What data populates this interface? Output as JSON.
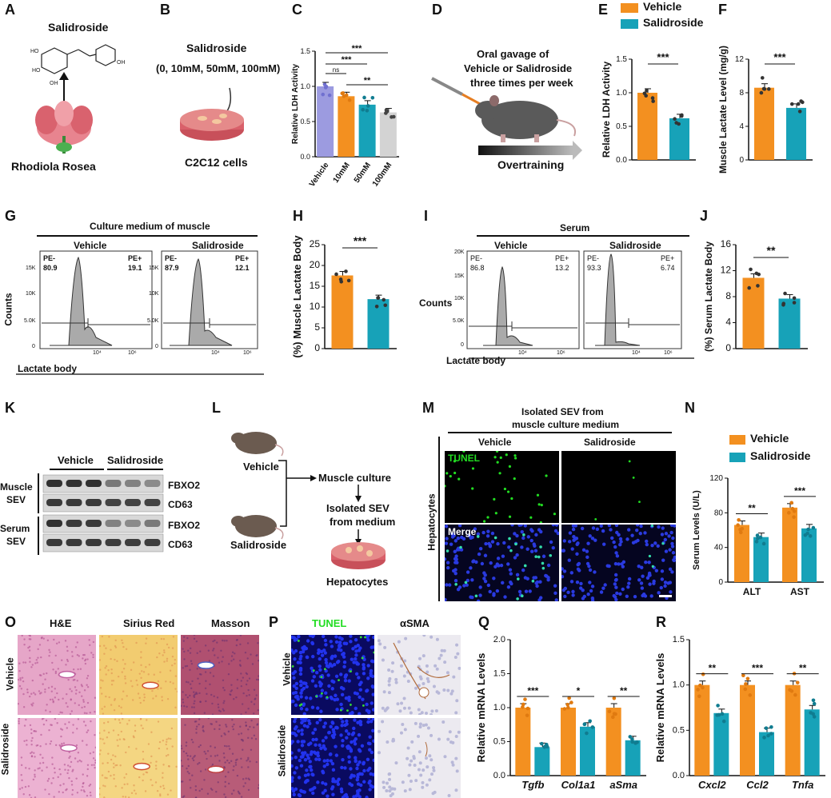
{
  "colors": {
    "vehicle": "#F39020",
    "salidroside": "#17A2B8",
    "purple": "#9C9BE0",
    "gray": "#D3D3D3",
    "greenTunel": "#22DD22"
  },
  "labels": [
    "A",
    "B",
    "C",
    "D",
    "E",
    "F",
    "G",
    "H",
    "I",
    "J",
    "K",
    "L",
    "M",
    "N",
    "O",
    "P",
    "Q",
    "R"
  ],
  "panelA": {
    "compound": "Salidroside",
    "plant": "Rhodiola Rosea"
  },
  "panelB": {
    "title": "Salidroside",
    "doses": "(0, 10mM, 50mM, 100mM)",
    "cells": "C2C12 cells"
  },
  "panelD": {
    "line1": "Oral gavage of",
    "line2": "Vehicle or Salidroside",
    "line3": "three times per week",
    "arrow": "Overtraining"
  },
  "legend": {
    "vehicle": "Vehicle",
    "salidroside": "Salidroside"
  },
  "panelG": {
    "title": "Culture medium of muscle",
    "vehicle": "Vehicle",
    "salidroside": "Salidroside",
    "ylabel": "Counts",
    "xlabel": "Lactate body",
    "pe_minus": "PE-",
    "pe_plus": "PE+",
    "v_neg": "80.9",
    "v_pos": "19.1",
    "s_neg": "87.9",
    "s_pos": "12.1",
    "yticks": [
      "15K",
      "10K",
      "5.0K",
      "0"
    ],
    "xticks": [
      "10⁴",
      "10⁶"
    ]
  },
  "panelI": {
    "title": "Serum",
    "vehicle": "Vehicle",
    "salidroside": "Salidroside",
    "ylabel": "Counts",
    "xlabel": "Lactate body",
    "pe_minus": "PE-",
    "pe_plus": "PE+",
    "v_neg": "86.8",
    "v_pos": "13.2",
    "s_neg": "93.3",
    "s_pos": "6.74",
    "yticks": [
      "20K",
      "15K",
      "10K",
      "5.0K",
      "0"
    ],
    "xticks": [
      "10⁴",
      "10⁶"
    ]
  },
  "panelK": {
    "vehicle": "Vehicle",
    "salidroside": "Salidroside",
    "row1": "Muscle",
    "row1b": "SEV",
    "row2": "Serum",
    "row2b": "SEV",
    "fbxo2": "FBXO2",
    "cd63": "CD63"
  },
  "panelL": {
    "vehicle": "Vehicle",
    "salidroside": "Salidroside",
    "step1": "Muscle culture",
    "step2a": "Isolated SEV",
    "step2b": "from medium",
    "step3": "Hepatocytes"
  },
  "panelM": {
    "title1": "Isolated SEV from",
    "title2": "muscle culture medium",
    "vehicle": "Vehicle",
    "salidroside": "Salidroside",
    "tunel": "TUNEL",
    "merge": "Merge",
    "side": "Hepatocytes"
  },
  "panelO": {
    "he": "H&E",
    "sirius": "Sirius Red",
    "masson": "Masson",
    "vehicle": "Vehicle",
    "salidroside": "Salidroside"
  },
  "panelP": {
    "tunel": "TUNEL",
    "asma": "αSMA",
    "vehicle": "Vehicle",
    "salidroside": "Salidroside"
  },
  "chart_data": [
    {
      "panel": "C",
      "type": "bar",
      "ylabel": "Relative LDH Activity",
      "categories": [
        "Vehicle",
        "10mM",
        "50mM",
        "100mM"
      ],
      "values": [
        1.0,
        0.86,
        0.74,
        0.63
      ],
      "ylim": [
        0,
        1.5
      ],
      "yticks": [
        0.0,
        0.5,
        1.0,
        1.5
      ],
      "sig": [
        "ns",
        "***",
        "**",
        "***"
      ]
    },
    {
      "panel": "E",
      "type": "bar",
      "ylabel": "Relative LDH Activity",
      "categories": [
        "Vehicle",
        "Salidroside"
      ],
      "values": [
        1.0,
        0.62
      ],
      "ylim": [
        0,
        1.5
      ],
      "yticks": [
        0.0,
        0.5,
        1.0,
        1.5
      ],
      "sig": [
        "***"
      ]
    },
    {
      "panel": "F",
      "type": "bar",
      "ylabel": "Muscle Lactate Level (mg/g)",
      "categories": [
        "Vehicle",
        "Salidroside"
      ],
      "values": [
        8.6,
        6.2
      ],
      "ylim": [
        0,
        12
      ],
      "yticks": [
        0,
        4,
        8,
        12
      ],
      "sig": [
        "***"
      ]
    },
    {
      "panel": "H",
      "type": "bar",
      "ylabel": "(%) Muscle Lactate Body",
      "categories": [
        "Vehicle",
        "Salidroside"
      ],
      "values": [
        17.6,
        11.9
      ],
      "ylim": [
        0,
        25
      ],
      "yticks": [
        0,
        5,
        10,
        15,
        20,
        25
      ],
      "sig": [
        "***"
      ]
    },
    {
      "panel": "J",
      "type": "bar",
      "ylabel": "(%) Serum Lactate Body",
      "categories": [
        "Vehicle",
        "Salidroside"
      ],
      "values": [
        10.9,
        7.7
      ],
      "ylim": [
        0,
        16
      ],
      "yticks": [
        0,
        4,
        8,
        12,
        16
      ],
      "sig": [
        "**"
      ]
    },
    {
      "panel": "N",
      "type": "bar",
      "ylabel": "Serum Levels (U/L)",
      "categories": [
        "ALT",
        "AST"
      ],
      "series": [
        {
          "name": "Vehicle",
          "values": [
            66,
            86
          ]
        },
        {
          "name": "Salidroside",
          "values": [
            52,
            62
          ]
        }
      ],
      "ylim": [
        0,
        120
      ],
      "yticks": [
        0,
        40,
        80,
        120
      ],
      "sig": [
        "**",
        "***"
      ]
    },
    {
      "panel": "Q",
      "type": "bar",
      "ylabel": "Relative mRNA Levels",
      "categories": [
        "Tgfb",
        "Col1a1",
        "aSma"
      ],
      "series": [
        {
          "name": "Vehicle",
          "values": [
            1.0,
            1.0,
            1.0
          ]
        },
        {
          "name": "Salidroside",
          "values": [
            0.42,
            0.72,
            0.52
          ]
        }
      ],
      "ylim": [
        0,
        2.0
      ],
      "yticks": [
        0.0,
        0.5,
        1.0,
        1.5,
        2.0
      ],
      "sig": [
        "***",
        "*",
        "**"
      ]
    },
    {
      "panel": "R",
      "type": "bar",
      "ylabel": "Relative mRNA Levels",
      "categories": [
        "Cxcl2",
        "Ccl2",
        "Tnfa"
      ],
      "series": [
        {
          "name": "Vehicle",
          "values": [
            1.0,
            1.0,
            1.0
          ]
        },
        {
          "name": "Salidroside",
          "values": [
            0.69,
            0.48,
            0.73
          ]
        }
      ],
      "ylim": [
        0,
        1.5
      ],
      "yticks": [
        0.0,
        0.5,
        1.0,
        1.5
      ],
      "sig": [
        "**",
        "***",
        "**"
      ]
    }
  ]
}
